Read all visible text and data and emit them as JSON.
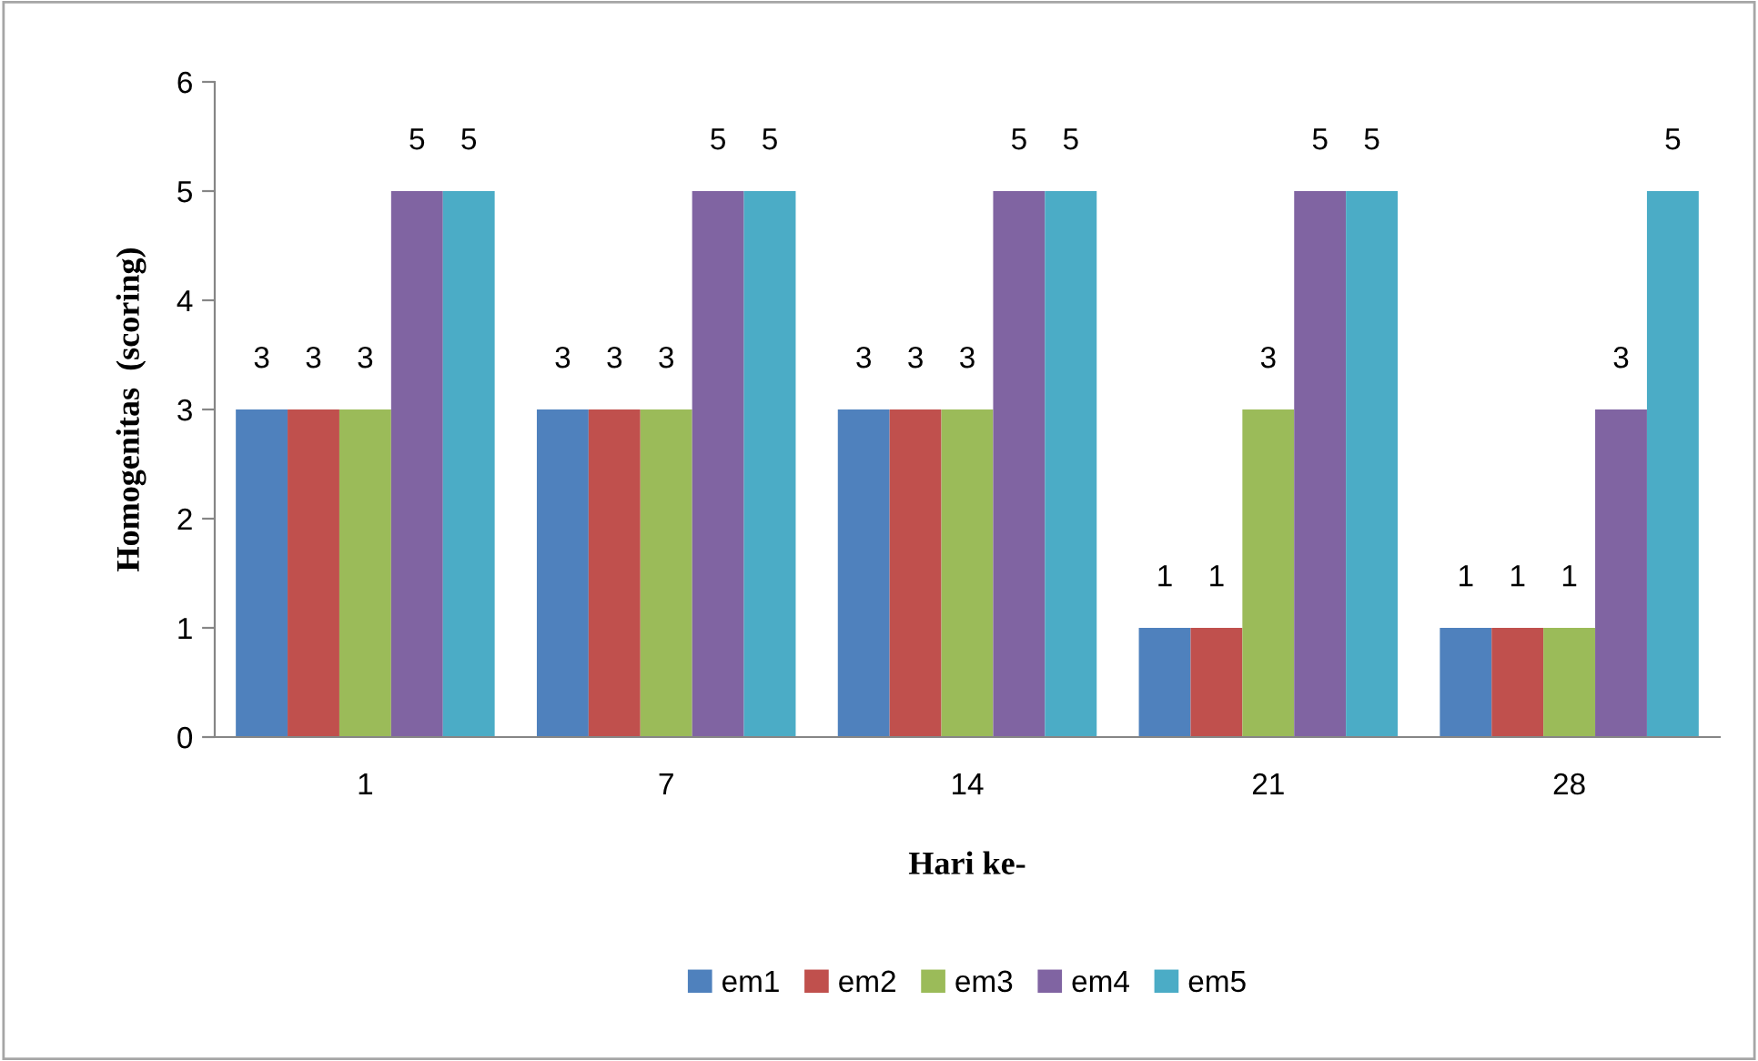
{
  "chart_data": {
    "type": "bar",
    "xlabel": "Hari ke-",
    "ylabel": "Homogenitas  (scoring)",
    "categories": [
      "1",
      "7",
      "14",
      "21",
      "28"
    ],
    "series": [
      {
        "name": "em1",
        "color": "#4f81bd",
        "values": [
          3,
          3,
          3,
          1,
          1
        ]
      },
      {
        "name": "em2",
        "color": "#c0504d",
        "values": [
          3,
          3,
          3,
          1,
          1
        ]
      },
      {
        "name": "em3",
        "color": "#9bbb59",
        "values": [
          3,
          3,
          3,
          3,
          1
        ]
      },
      {
        "name": "em4",
        "color": "#8064a2",
        "values": [
          5,
          5,
          5,
          5,
          3
        ]
      },
      {
        "name": "em5",
        "color": "#4bacc6",
        "values": [
          5,
          5,
          5,
          5,
          5
        ]
      }
    ],
    "ylim": [
      0,
      6
    ],
    "yticks": [
      0,
      1,
      2,
      3,
      4,
      5,
      6
    ],
    "grid": false,
    "legend": "bottom",
    "data_labels": true
  }
}
